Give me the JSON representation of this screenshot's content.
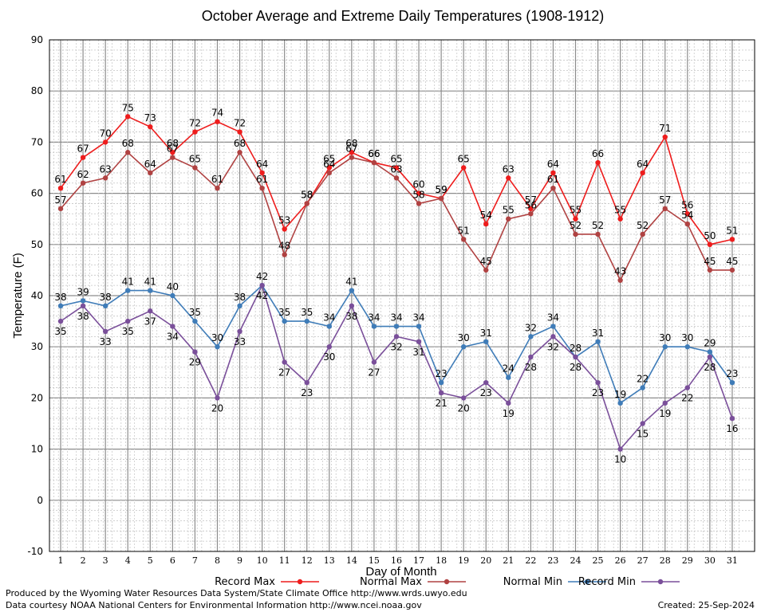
{
  "chart_data": {
    "type": "line",
    "title": "October Average and Extreme Daily Temperatures (1908-1912)",
    "xlabel": "Day of Month",
    "ylabel": "Temperature (F)",
    "ylim": [
      -10,
      90
    ],
    "yticks": [
      -10,
      0,
      10,
      20,
      30,
      40,
      50,
      60,
      70,
      80,
      90
    ],
    "x": [
      1,
      2,
      3,
      4,
      5,
      6,
      7,
      8,
      9,
      10,
      11,
      12,
      13,
      14,
      15,
      16,
      17,
      18,
      19,
      20,
      21,
      22,
      23,
      24,
      25,
      26,
      27,
      28,
      29,
      30,
      31
    ],
    "grid": true,
    "legend_position": "bottom",
    "series": [
      {
        "name": "Record Max",
        "color": "#ee1c1c",
        "label_position": "above",
        "values": [
          61,
          67,
          70,
          75,
          73,
          68,
          72,
          74,
          72,
          64,
          53,
          58,
          65,
          68,
          66,
          65,
          60,
          59,
          65,
          54,
          63,
          57,
          64,
          55,
          66,
          55,
          64,
          71,
          56,
          50,
          51
        ]
      },
      {
        "name": "Normal Max",
        "color": "#b04242",
        "label_position": "above",
        "values": [
          57,
          62,
          63,
          68,
          64,
          67,
          65,
          61,
          68,
          61,
          48,
          58,
          64,
          67,
          66,
          63,
          58,
          59,
          51,
          45,
          55,
          56,
          61,
          52,
          52,
          43,
          52,
          57,
          54,
          45,
          45
        ]
      },
      {
        "name": "Normal Min",
        "color": "#3f7cb8",
        "label_position": "above",
        "values": [
          38,
          39,
          38,
          41,
          41,
          40,
          35,
          30,
          38,
          42,
          35,
          35,
          34,
          41,
          34,
          34,
          34,
          23,
          30,
          31,
          24,
          32,
          34,
          28,
          31,
          19,
          22,
          30,
          30,
          29,
          23
        ]
      },
      {
        "name": "Record Min",
        "color": "#7a4f9a",
        "label_position": "below",
        "values": [
          35,
          38,
          33,
          35,
          37,
          34,
          29,
          20,
          33,
          42,
          27,
          23,
          30,
          38,
          27,
          32,
          31,
          21,
          20,
          23,
          19,
          28,
          32,
          28,
          23,
          10,
          15,
          19,
          22,
          28,
          16
        ]
      }
    ]
  },
  "footer": {
    "produced_by": "Produced by the Wyoming Water Resources Data System/State Climate Office http://www.wrds.uwyo.edu",
    "courtesy": "Data courtesy NOAA National Centers for Environmental Information http://www.ncei.noaa.gov",
    "created": "Created:  25-Sep-2024"
  }
}
